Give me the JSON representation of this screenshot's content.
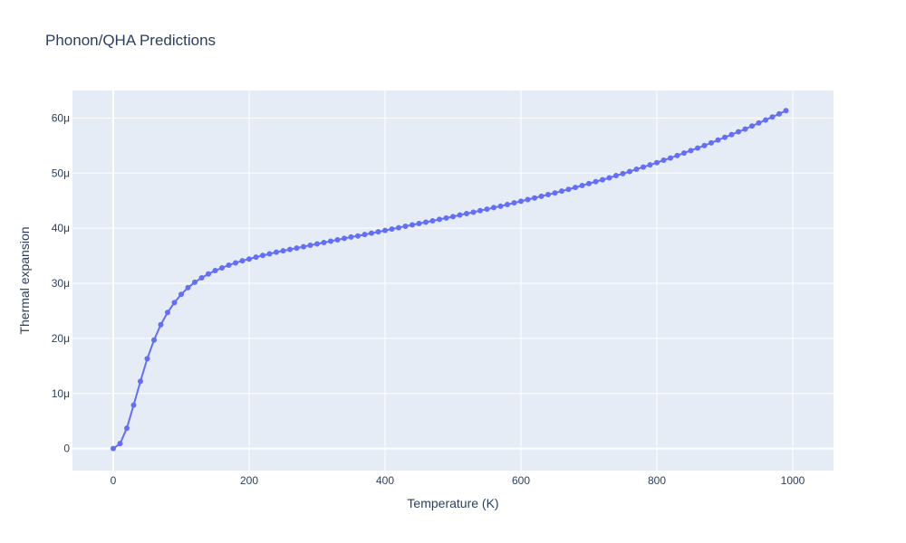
{
  "chart_data": {
    "type": "line",
    "title": "Phonon/QHA Predictions",
    "xlabel": "Temperature (K)",
    "ylabel": "Thermal expansion",
    "xlim": [
      -60,
      1060
    ],
    "ylim": [
      -4e-06,
      6.5e-05
    ],
    "x_ticks": [
      0,
      200,
      400,
      600,
      800,
      1000
    ],
    "x_tick_labels": [
      "0",
      "200",
      "400",
      "600",
      "800",
      "1000"
    ],
    "y_ticks": [
      0,
      1e-05,
      2e-05,
      3e-05,
      4e-05,
      5e-05,
      6e-05
    ],
    "y_tick_labels": [
      "0",
      "10μ",
      "20μ",
      "30μ",
      "40μ",
      "50μ",
      "60μ"
    ],
    "grid": true,
    "legend": "none",
    "colors": {
      "line": "#636efa",
      "plot_bg": "#e5ecf6",
      "grid": "#ffffff",
      "text": "#2a3f5f"
    },
    "series": [
      {
        "x": [
          0,
          10,
          20,
          30,
          40,
          50,
          60,
          70,
          80,
          90,
          100,
          110,
          120,
          130,
          140,
          150,
          160,
          170,
          180,
          190,
          200,
          210,
          220,
          230,
          240,
          250,
          260,
          270,
          280,
          290,
          300,
          310,
          320,
          330,
          340,
          350,
          360,
          370,
          380,
          390,
          400,
          410,
          420,
          430,
          440,
          450,
          460,
          470,
          480,
          490,
          500,
          510,
          520,
          530,
          540,
          550,
          560,
          570,
          580,
          590,
          600,
          610,
          620,
          630,
          640,
          650,
          660,
          670,
          680,
          690,
          700,
          710,
          720,
          730,
          740,
          750,
          760,
          770,
          780,
          790,
          800,
          810,
          820,
          830,
          840,
          850,
          860,
          870,
          880,
          890,
          900,
          910,
          920,
          930,
          940,
          950,
          960,
          970,
          980,
          990
        ],
        "y": [
          0,
          9e-07,
          3.7e-06,
          7.9e-06,
          1.22e-05,
          1.63e-05,
          1.97e-05,
          2.25e-05,
          2.47e-05,
          2.65e-05,
          2.8e-05,
          2.92e-05,
          3.02e-05,
          3.1e-05,
          3.17e-05,
          3.23e-05,
          3.28e-05,
          3.33e-05,
          3.37e-05,
          3.41e-05,
          3.44e-05,
          3.475e-05,
          3.505e-05,
          3.535e-05,
          3.565e-05,
          3.59e-05,
          3.615e-05,
          3.64e-05,
          3.665e-05,
          3.69e-05,
          3.715e-05,
          3.74e-05,
          3.765e-05,
          3.79e-05,
          3.815e-05,
          3.84e-05,
          3.86e-05,
          3.885e-05,
          3.91e-05,
          3.935e-05,
          3.96e-05,
          3.985e-05,
          4.01e-05,
          4.035e-05,
          4.06e-05,
          4.085e-05,
          4.11e-05,
          4.135e-05,
          4.16e-05,
          4.185e-05,
          4.21e-05,
          4.24e-05,
          4.265e-05,
          4.29e-05,
          4.32e-05,
          4.345e-05,
          4.375e-05,
          4.4e-05,
          4.43e-05,
          4.46e-05,
          4.49e-05,
          4.52e-05,
          4.55e-05,
          4.58e-05,
          4.61e-05,
          4.64e-05,
          4.675e-05,
          4.705e-05,
          4.74e-05,
          4.775e-05,
          4.81e-05,
          4.845e-05,
          4.88e-05,
          4.915e-05,
          4.955e-05,
          4.99e-05,
          5.03e-05,
          5.07e-05,
          5.11e-05,
          5.15e-05,
          5.19e-05,
          5.235e-05,
          5.275e-05,
          5.32e-05,
          5.365e-05,
          5.41e-05,
          5.455e-05,
          5.5e-05,
          5.55e-05,
          5.6e-05,
          5.65e-05,
          5.7e-05,
          5.75e-05,
          5.8e-05,
          5.855e-05,
          5.91e-05,
          5.965e-05,
          6.02e-05,
          6.075e-05,
          6.135e-05
        ]
      }
    ]
  }
}
